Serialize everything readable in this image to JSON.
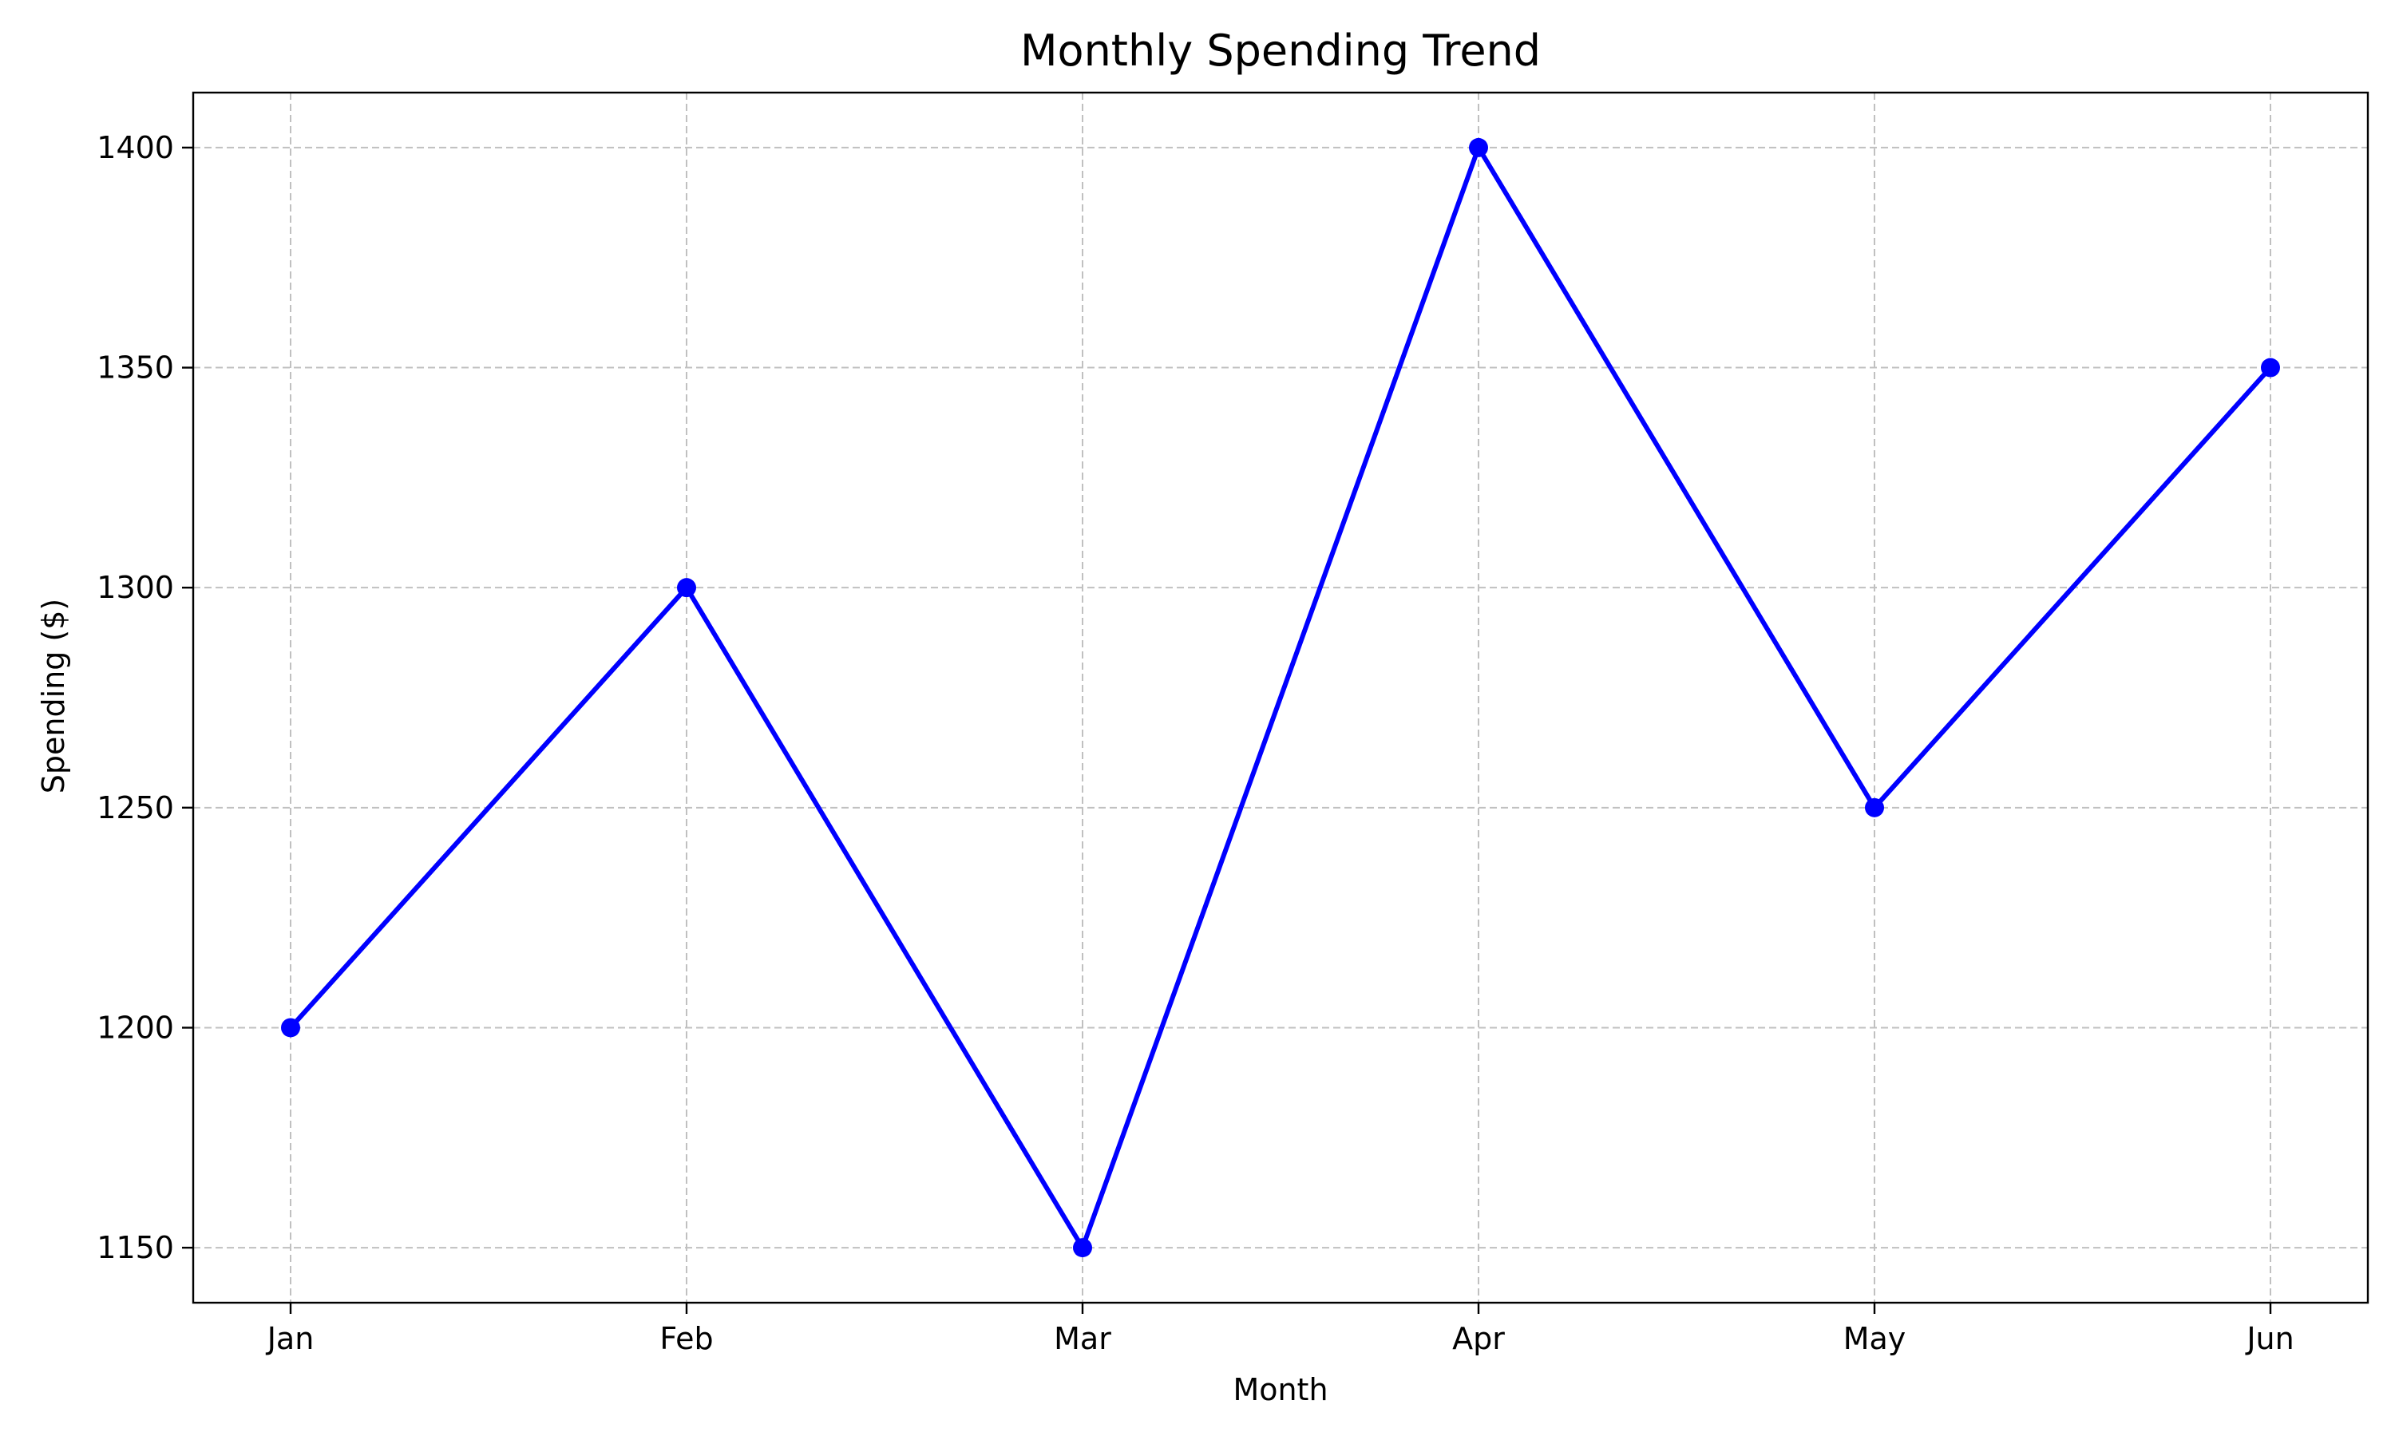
{
  "chart_data": {
    "type": "line",
    "title": "Monthly Spending Trend",
    "xlabel": "Month",
    "ylabel": "Spending ($)",
    "categories": [
      "Jan",
      "Feb",
      "Mar",
      "Apr",
      "May",
      "Jun"
    ],
    "series": [
      {
        "values": [
          1200,
          1300,
          1150,
          1400,
          1250,
          1350
        ],
        "color": "#0000ff",
        "marker": "circle"
      }
    ],
    "ylim": [
      1137.5,
      1412.5
    ],
    "yticks": [
      1150,
      1200,
      1250,
      1300,
      1350,
      1400
    ],
    "grid": true,
    "grid_style": "dashed",
    "grid_color": "#c0c0c0"
  }
}
